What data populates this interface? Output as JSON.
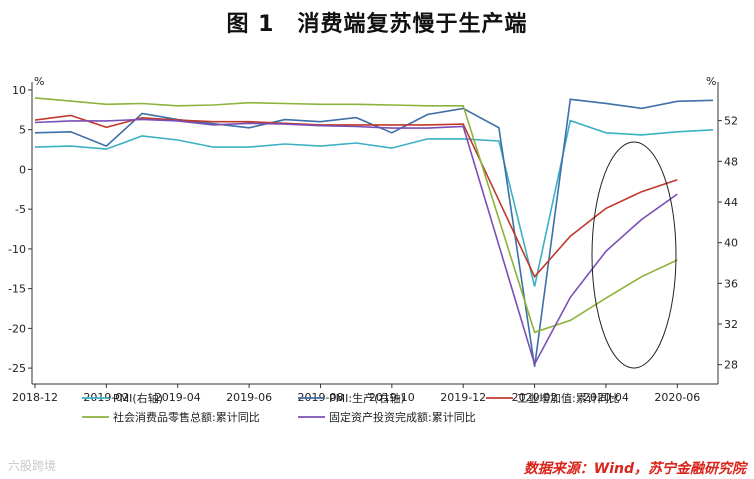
{
  "figure_title": "图 1　消费端复苏慢于生产端",
  "source_note": "数据来源：Wind，苏宁金融研究院",
  "watermark": "六股跨境",
  "chart_data": {
    "type": "line",
    "title": "消费端复苏慢于生产端",
    "left_unit": "%",
    "right_unit": "%",
    "x_ticks": [
      "2018-12",
      "2019-02",
      "2019-04",
      "2019-06",
      "2019-08",
      "2019-10",
      "2019-12",
      "2020-02",
      "2020-04",
      "2020-06"
    ],
    "y_left": {
      "min": -27,
      "max": 11,
      "ticks": [
        -25,
        -20,
        -15,
        -10,
        -5,
        0,
        5,
        10
      ]
    },
    "y_right": {
      "min": 26.1,
      "max": 55.8,
      "ticks": [
        28,
        32,
        36,
        40,
        44,
        48,
        52
      ]
    },
    "x": [
      "2018-12",
      "2019-01",
      "2019-02",
      "2019-03",
      "2019-04",
      "2019-05",
      "2019-06",
      "2019-07",
      "2019-08",
      "2019-09",
      "2019-10",
      "2019-11",
      "2019-12",
      "2020-01",
      "2020-02",
      "2020-03",
      "2020-04",
      "2020-05",
      "2020-06",
      "2020-07"
    ],
    "series": [
      {
        "name": "PMI(右轴)",
        "axis": "right",
        "color": "#3bb0c4",
        "values": [
          49.4,
          49.5,
          49.2,
          50.5,
          50.1,
          49.4,
          49.4,
          49.7,
          49.5,
          49.8,
          49.3,
          50.2,
          50.2,
          50.0,
          35.7,
          52.0,
          50.8,
          50.6,
          50.9,
          51.1
        ]
      },
      {
        "name": "PMI:生产(右轴)",
        "axis": "right",
        "color": "#3d6fa8",
        "values": [
          50.8,
          50.9,
          49.5,
          52.7,
          52.1,
          51.7,
          51.3,
          52.1,
          51.9,
          52.3,
          50.8,
          52.6,
          53.2,
          51.3,
          27.8,
          54.1,
          53.7,
          53.2,
          53.9,
          54.0
        ]
      },
      {
        "name": "工业增加值:累计同比",
        "axis": "left",
        "color": "#c0392b",
        "values": [
          6.2,
          6.8,
          5.3,
          6.5,
          6.2,
          6.0,
          6.0,
          5.8,
          5.6,
          5.6,
          5.6,
          5.6,
          5.7,
          null,
          -13.5,
          -8.4,
          -4.9,
          -2.8,
          -1.3,
          null
        ]
      },
      {
        "name": "社会消费品零售总额:累计同比",
        "axis": "left",
        "color": "#8db33c",
        "values": [
          9.0,
          8.6,
          8.2,
          8.3,
          8.0,
          8.1,
          8.4,
          8.3,
          8.2,
          8.2,
          8.1,
          8.0,
          8.0,
          null,
          -20.5,
          -19.0,
          -16.2,
          -13.5,
          -11.4,
          null
        ]
      },
      {
        "name": "固定资产投资完成额:累计同比",
        "axis": "left",
        "color": "#7a4fb5",
        "values": [
          5.9,
          6.1,
          6.1,
          6.3,
          6.1,
          5.6,
          5.8,
          5.7,
          5.5,
          5.4,
          5.2,
          5.2,
          5.4,
          null,
          -24.5,
          -16.1,
          -10.3,
          -6.3,
          -3.1,
          null
        ]
      }
    ],
    "legend_position": "bottom"
  }
}
